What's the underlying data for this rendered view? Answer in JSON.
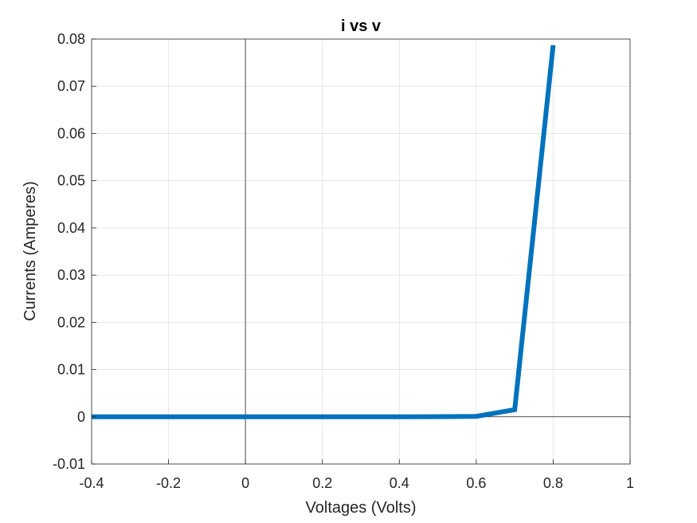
{
  "chart_data": {
    "type": "line",
    "title": "i vs v",
    "xlabel": "Voltages (Volts)",
    "ylabel": "Currents (Amperes)",
    "xlim": [
      -0.4,
      1
    ],
    "ylim": [
      -0.01,
      0.08
    ],
    "xticks": [
      -0.4,
      -0.2,
      0,
      0.2,
      0.4,
      0.6,
      0.8,
      1
    ],
    "yticks": [
      -0.01,
      0,
      0.01,
      0.02,
      0.03,
      0.04,
      0.05,
      0.06,
      0.07,
      0.08
    ],
    "xtick_labels": [
      "-0.4",
      "-0.2",
      "0",
      "0.2",
      "0.4",
      "0.6",
      "0.8",
      "1"
    ],
    "ytick_labels": [
      "-0.01",
      "0",
      "0.01",
      "0.02",
      "0.03",
      "0.04",
      "0.05",
      "0.06",
      "0.07",
      "0.08"
    ],
    "grid": true,
    "zero_lines": true,
    "series": [
      {
        "color": "#0072BD",
        "x": [
          -0.4,
          -0.3,
          -0.2,
          -0.1,
          0,
          0.1,
          0.2,
          0.3,
          0.4,
          0.5,
          0.6,
          0.7,
          0.8
        ],
        "y": [
          0,
          0,
          0,
          0,
          0,
          0,
          0,
          0,
          0,
          2e-05,
          0.0001,
          0.0015,
          0.0787
        ]
      }
    ]
  }
}
